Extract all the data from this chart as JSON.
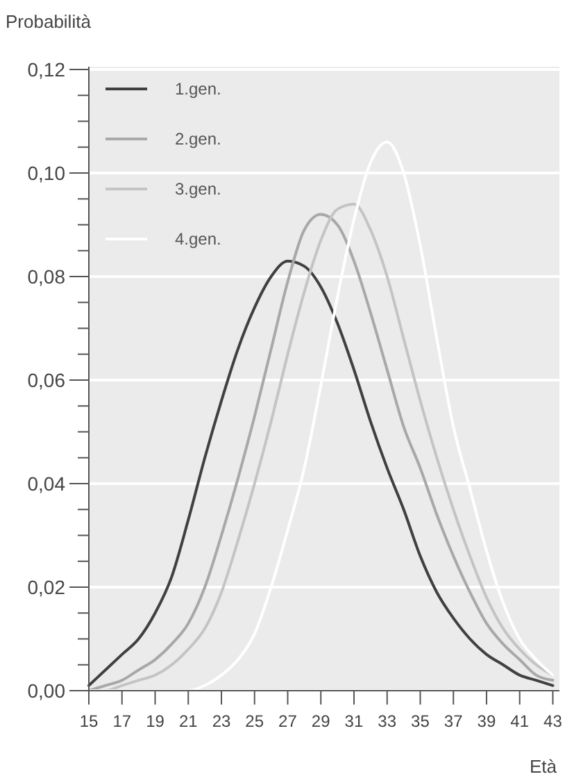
{
  "chart_data": {
    "type": "line",
    "ylabel": "Probabilità",
    "xlabel": "Età",
    "x": [
      15,
      16,
      17,
      18,
      19,
      20,
      21,
      22,
      23,
      24,
      25,
      26,
      27,
      28,
      29,
      30,
      31,
      32,
      33,
      34,
      35,
      36,
      37,
      38,
      39,
      40,
      41,
      42,
      43
    ],
    "xlim": [
      15,
      43.4
    ],
    "xticks": [
      15,
      17,
      19,
      21,
      23,
      25,
      27,
      29,
      31,
      33,
      35,
      37,
      39,
      41,
      43
    ],
    "ylim": [
      0,
      0.12
    ],
    "yticks": [
      {
        "value": 0,
        "label": "0,00"
      },
      {
        "value": 0.005,
        "label": null
      },
      {
        "value": 0.01,
        "label": null
      },
      {
        "value": 0.015,
        "label": null
      },
      {
        "value": 0.02,
        "label": "0,02"
      },
      {
        "value": 0.025,
        "label": null
      },
      {
        "value": 0.03,
        "label": null
      },
      {
        "value": 0.035,
        "label": null
      },
      {
        "value": 0.04,
        "label": "0,04"
      },
      {
        "value": 0.045,
        "label": null
      },
      {
        "value": 0.05,
        "label": null
      },
      {
        "value": 0.055,
        "label": null
      },
      {
        "value": 0.06,
        "label": "0,06"
      },
      {
        "value": 0.065,
        "label": null
      },
      {
        "value": 0.07,
        "label": null
      },
      {
        "value": 0.075,
        "label": null
      },
      {
        "value": 0.08,
        "label": "0,08"
      },
      {
        "value": 0.085,
        "label": null
      },
      {
        "value": 0.09,
        "label": null
      },
      {
        "value": 0.095,
        "label": null
      },
      {
        "value": 0.1,
        "label": "0,10"
      },
      {
        "value": 0.105,
        "label": null
      },
      {
        "value": 0.11,
        "label": null
      },
      {
        "value": 0.115,
        "label": null
      },
      {
        "value": 0.12,
        "label": "0,12"
      }
    ],
    "grid": "y",
    "legend": "top left",
    "marker": "none",
    "line_style": "solid",
    "series": [
      {
        "name": "1.gen.",
        "color": "#404040",
        "values": [
          0.001,
          0.004,
          0.007,
          0.01,
          0.015,
          0.022,
          0.033,
          0.045,
          0.056,
          0.066,
          0.074,
          0.08,
          0.083,
          0.082,
          0.078,
          0.071,
          0.062,
          0.052,
          0.043,
          0.035,
          0.026,
          0.019,
          0.014,
          0.01,
          0.007,
          0.005,
          0.003,
          0.002,
          0.001
        ]
      },
      {
        "name": "2.gen.",
        "color": "#a8a8a8",
        "values": [
          0,
          0.001,
          0.002,
          0.004,
          0.006,
          0.009,
          0.013,
          0.02,
          0.03,
          0.041,
          0.053,
          0.066,
          0.079,
          0.089,
          0.092,
          0.09,
          0.083,
          0.073,
          0.062,
          0.051,
          0.043,
          0.034,
          0.026,
          0.019,
          0.013,
          0.009,
          0.006,
          0.003,
          0.002
        ]
      },
      {
        "name": "3.gen.",
        "color": "#c4c4c4",
        "values": [
          0,
          0,
          0.001,
          0.002,
          0.003,
          0.005,
          0.008,
          0.012,
          0.019,
          0.029,
          0.04,
          0.052,
          0.065,
          0.077,
          0.087,
          0.093,
          0.094,
          0.089,
          0.08,
          0.068,
          0.056,
          0.045,
          0.035,
          0.026,
          0.018,
          0.012,
          0.008,
          0.005,
          0.003
        ]
      },
      {
        "name": "4.gen.",
        "color": "#ffffff",
        "values": [
          0,
          0,
          0,
          0,
          0,
          0,
          0,
          0.001,
          0.003,
          0.006,
          0.011,
          0.02,
          0.031,
          0.043,
          0.059,
          0.076,
          0.091,
          0.102,
          0.106,
          0.1,
          0.086,
          0.068,
          0.051,
          0.039,
          0.027,
          0.017,
          0.01,
          0.006,
          0.003
        ]
      }
    ]
  }
}
